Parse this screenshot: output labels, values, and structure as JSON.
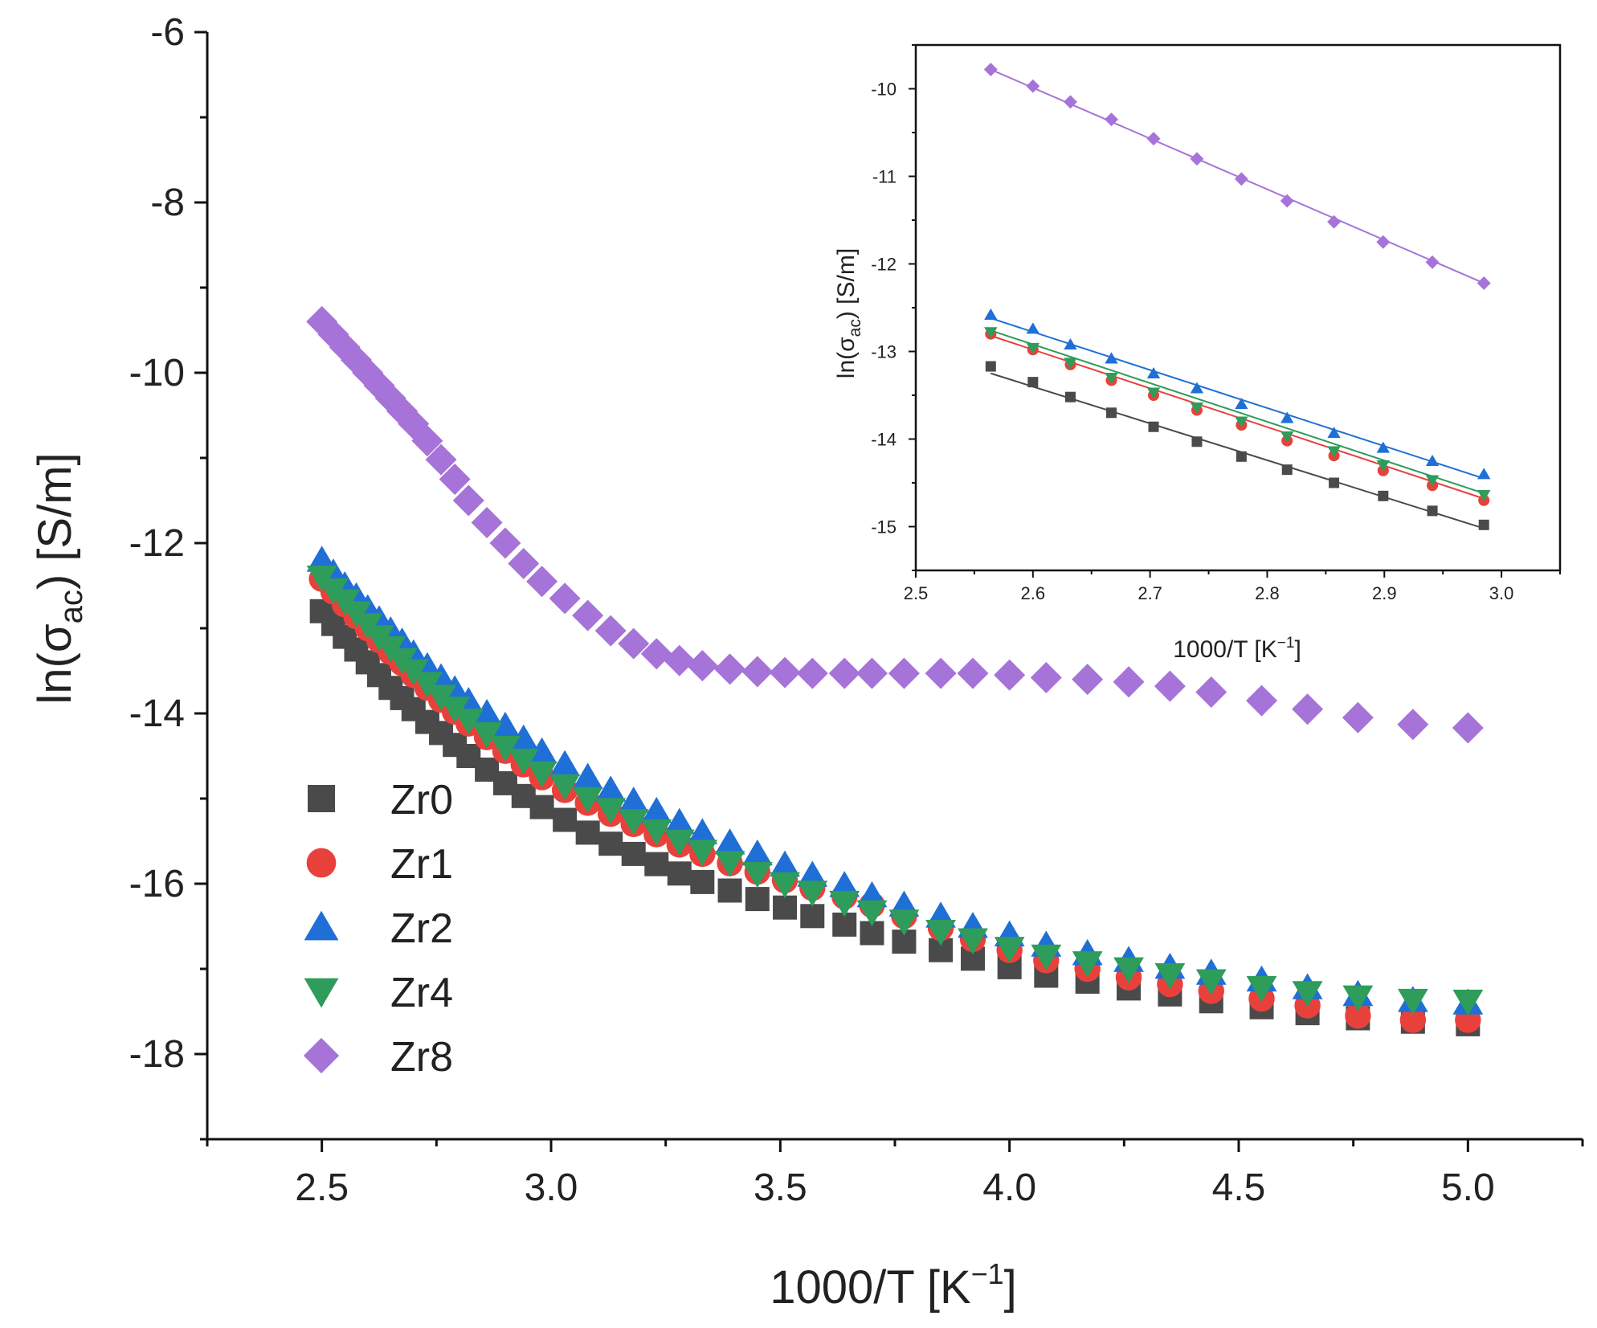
{
  "chart_data": [
    {
      "type": "scatter",
      "id": "main",
      "xlabel": "1000/T [K⁻¹]",
      "xlabel_parts": [
        "1000/T [K",
        "−1",
        "]"
      ],
      "ylabel": "ln(σac) [S/m]",
      "ylabel_parts": [
        "ln(σ",
        "ac",
        ") [S/m]"
      ],
      "xlim": [
        2.25,
        5.25
      ],
      "ylim": [
        -19,
        -6
      ],
      "xticks": [
        2.5,
        3.0,
        3.5,
        4.0,
        4.5,
        5.0
      ],
      "xtick_labels": [
        "2.5",
        "3.0",
        "3.5",
        "4.0",
        "4.5",
        "5.0"
      ],
      "yticks": [
        -6,
        -8,
        -10,
        -12,
        -14,
        -16,
        -18
      ],
      "ytick_labels": [
        "-6",
        "-8",
        "-10",
        "-12",
        "-14",
        "-16",
        "-18"
      ],
      "grid": false,
      "legend_position": "lower-left",
      "series": [
        {
          "name": "Zr0",
          "color": "#4a4a4a",
          "marker": "square",
          "x": [
            2.5,
            2.525,
            2.55,
            2.575,
            2.6,
            2.625,
            2.65,
            2.675,
            2.7,
            2.73,
            2.76,
            2.79,
            2.82,
            2.86,
            2.9,
            2.94,
            2.98,
            3.03,
            3.08,
            3.13,
            3.18,
            3.23,
            3.28,
            3.33,
            3.39,
            3.45,
            3.51,
            3.57,
            3.64,
            3.7,
            3.77,
            3.85,
            3.92,
            4.0,
            4.08,
            4.17,
            4.26,
            4.35,
            4.44,
            4.55,
            4.65,
            4.76,
            4.88,
            5.0
          ],
          "y": [
            -12.8,
            -12.95,
            -13.1,
            -13.25,
            -13.4,
            -13.55,
            -13.7,
            -13.82,
            -13.95,
            -14.1,
            -14.23,
            -14.37,
            -14.5,
            -14.66,
            -14.82,
            -14.97,
            -15.1,
            -15.25,
            -15.4,
            -15.53,
            -15.65,
            -15.77,
            -15.88,
            -15.98,
            -16.08,
            -16.18,
            -16.28,
            -16.38,
            -16.48,
            -16.58,
            -16.68,
            -16.78,
            -16.88,
            -16.98,
            -17.08,
            -17.15,
            -17.23,
            -17.3,
            -17.38,
            -17.45,
            -17.52,
            -17.58,
            -17.62,
            -17.65
          ]
        },
        {
          "name": "Zr1",
          "color": "#e8413c",
          "marker": "circle",
          "x": [
            2.5,
            2.525,
            2.55,
            2.575,
            2.6,
            2.625,
            2.65,
            2.675,
            2.7,
            2.73,
            2.76,
            2.79,
            2.82,
            2.86,
            2.9,
            2.94,
            2.98,
            3.03,
            3.08,
            3.13,
            3.18,
            3.23,
            3.28,
            3.33,
            3.39,
            3.45,
            3.51,
            3.57,
            3.64,
            3.7,
            3.77,
            3.85,
            3.92,
            4.0,
            4.08,
            4.17,
            4.26,
            4.35,
            4.44,
            4.55,
            4.65,
            4.76,
            4.88,
            5.0
          ],
          "y": [
            -12.42,
            -12.57,
            -12.72,
            -12.86,
            -13.0,
            -13.14,
            -13.28,
            -13.41,
            -13.55,
            -13.7,
            -13.84,
            -13.98,
            -14.12,
            -14.28,
            -14.44,
            -14.6,
            -14.75,
            -14.9,
            -15.05,
            -15.18,
            -15.3,
            -15.42,
            -15.54,
            -15.65,
            -15.76,
            -15.86,
            -15.96,
            -16.05,
            -16.15,
            -16.25,
            -16.38,
            -16.52,
            -16.65,
            -16.78,
            -16.9,
            -17.0,
            -17.1,
            -17.18,
            -17.26,
            -17.35,
            -17.43,
            -17.55,
            -17.6,
            -17.6
          ]
        },
        {
          "name": "Zr2",
          "color": "#1f6fd6",
          "marker": "triangle-up",
          "x": [
            2.5,
            2.525,
            2.55,
            2.575,
            2.6,
            2.625,
            2.65,
            2.675,
            2.7,
            2.73,
            2.76,
            2.79,
            2.82,
            2.86,
            2.9,
            2.94,
            2.98,
            3.03,
            3.08,
            3.13,
            3.18,
            3.23,
            3.28,
            3.33,
            3.39,
            3.45,
            3.51,
            3.57,
            3.64,
            3.7,
            3.77,
            3.85,
            3.92,
            4.0,
            4.08,
            4.17,
            4.26,
            4.35,
            4.44,
            4.55,
            4.65,
            4.76,
            4.88,
            5.0
          ],
          "y": [
            -12.2,
            -12.35,
            -12.5,
            -12.63,
            -12.77,
            -12.9,
            -13.03,
            -13.16,
            -13.3,
            -13.45,
            -13.58,
            -13.72,
            -13.86,
            -14.0,
            -14.15,
            -14.3,
            -14.45,
            -14.6,
            -14.75,
            -14.9,
            -15.03,
            -15.15,
            -15.28,
            -15.4,
            -15.52,
            -15.65,
            -15.78,
            -15.9,
            -16.02,
            -16.14,
            -16.25,
            -16.38,
            -16.5,
            -16.6,
            -16.72,
            -16.82,
            -16.9,
            -16.98,
            -17.05,
            -17.13,
            -17.22,
            -17.3,
            -17.37,
            -17.4
          ]
        },
        {
          "name": "Zr4",
          "color": "#2e9c5a",
          "marker": "triangle-down",
          "x": [
            2.5,
            2.525,
            2.55,
            2.575,
            2.6,
            2.625,
            2.65,
            2.675,
            2.7,
            2.73,
            2.76,
            2.79,
            2.82,
            2.86,
            2.9,
            2.94,
            2.98,
            3.03,
            3.08,
            3.13,
            3.18,
            3.23,
            3.28,
            3.33,
            3.39,
            3.45,
            3.51,
            3.57,
            3.64,
            3.7,
            3.77,
            3.85,
            3.92,
            4.0,
            4.08,
            4.17,
            4.26,
            4.35,
            4.44,
            4.55,
            4.65,
            4.76,
            4.88,
            5.0
          ],
          "y": [
            -12.4,
            -12.55,
            -12.68,
            -12.82,
            -12.96,
            -13.1,
            -13.23,
            -13.37,
            -13.5,
            -13.65,
            -13.8,
            -13.94,
            -14.08,
            -14.24,
            -14.4,
            -14.55,
            -14.7,
            -14.85,
            -15.0,
            -15.13,
            -15.26,
            -15.38,
            -15.5,
            -15.62,
            -15.75,
            -15.88,
            -16.0,
            -16.1,
            -16.22,
            -16.33,
            -16.44,
            -16.56,
            -16.66,
            -16.76,
            -16.85,
            -16.93,
            -17.0,
            -17.07,
            -17.14,
            -17.22,
            -17.28,
            -17.33,
            -17.37,
            -17.38
          ]
        },
        {
          "name": "Zr8",
          "color": "#a673d8",
          "marker": "diamond",
          "x": [
            2.5,
            2.525,
            2.55,
            2.575,
            2.6,
            2.625,
            2.65,
            2.675,
            2.7,
            2.73,
            2.76,
            2.79,
            2.82,
            2.86,
            2.9,
            2.94,
            2.98,
            3.03,
            3.08,
            3.13,
            3.18,
            3.23,
            3.28,
            3.33,
            3.39,
            3.45,
            3.51,
            3.57,
            3.64,
            3.7,
            3.77,
            3.85,
            3.92,
            4.0,
            4.08,
            4.17,
            4.26,
            4.35,
            4.44,
            4.55,
            4.65,
            4.76,
            4.88,
            5.0
          ],
          "y": [
            -9.4,
            -9.55,
            -9.7,
            -9.85,
            -10.0,
            -10.15,
            -10.3,
            -10.45,
            -10.6,
            -10.8,
            -11.02,
            -11.25,
            -11.5,
            -11.76,
            -12.0,
            -12.24,
            -12.45,
            -12.65,
            -12.85,
            -13.03,
            -13.18,
            -13.3,
            -13.38,
            -13.44,
            -13.48,
            -13.51,
            -13.52,
            -13.53,
            -13.53,
            -13.53,
            -13.53,
            -13.53,
            -13.53,
            -13.55,
            -13.58,
            -13.6,
            -13.63,
            -13.68,
            -13.75,
            -13.85,
            -13.95,
            -14.05,
            -14.13,
            -14.17
          ]
        }
      ]
    },
    {
      "type": "scatter",
      "id": "inset",
      "note": "inset with linear fits",
      "xlabel_parts": [
        "1000/T [K",
        "−1",
        "]"
      ],
      "ylabel_parts": [
        "ln(σ",
        "ac",
        ") [S/m]"
      ],
      "xlim": [
        2.5,
        3.05
      ],
      "ylim": [
        -15.5,
        -9.5
      ],
      "xticks": [
        2.5,
        2.6,
        2.7,
        2.8,
        2.9,
        3.0
      ],
      "xtick_labels": [
        "2.5",
        "2.6",
        "2.7",
        "2.8",
        "2.9",
        "3.0"
      ],
      "yticks": [
        -10,
        -11,
        -12,
        -13,
        -14,
        -15
      ],
      "ytick_labels": [
        "-10",
        "-11",
        "-12",
        "-13",
        "-14",
        "-15"
      ],
      "grid": false,
      "series": [
        {
          "name": "Zr0",
          "color": "#4a4a4a",
          "marker": "square",
          "x": [
            2.564,
            2.6,
            2.632,
            2.667,
            2.703,
            2.74,
            2.778,
            2.817,
            2.857,
            2.899,
            2.941,
            2.985
          ],
          "y": [
            -13.17,
            -13.35,
            -13.52,
            -13.7,
            -13.86,
            -14.03,
            -14.2,
            -14.35,
            -14.5,
            -14.65,
            -14.82,
            -14.98
          ],
          "fit": [
            [
              2.564,
              -13.25
            ],
            [
              2.985,
              -15.02
            ]
          ]
        },
        {
          "name": "Zr1",
          "color": "#e8413c",
          "marker": "circle",
          "x": [
            2.564,
            2.6,
            2.632,
            2.667,
            2.703,
            2.74,
            2.778,
            2.817,
            2.857,
            2.899,
            2.941,
            2.985
          ],
          "y": [
            -12.8,
            -12.98,
            -13.15,
            -13.33,
            -13.5,
            -13.67,
            -13.84,
            -14.02,
            -14.19,
            -14.36,
            -14.53,
            -14.7
          ],
          "fit": [
            [
              2.564,
              -12.82
            ],
            [
              2.985,
              -14.68
            ]
          ]
        },
        {
          "name": "Zr2",
          "color": "#1f6fd6",
          "marker": "triangle-up",
          "x": [
            2.564,
            2.6,
            2.632,
            2.667,
            2.703,
            2.74,
            2.778,
            2.817,
            2.857,
            2.899,
            2.941,
            2.985
          ],
          "y": [
            -12.58,
            -12.74,
            -12.92,
            -13.08,
            -13.25,
            -13.42,
            -13.6,
            -13.76,
            -13.93,
            -14.1,
            -14.25,
            -14.4
          ],
          "fit": [
            [
              2.564,
              -12.62
            ],
            [
              2.985,
              -14.45
            ]
          ]
        },
        {
          "name": "Zr4",
          "color": "#2e9c5a",
          "marker": "triangle-down",
          "x": [
            2.564,
            2.6,
            2.632,
            2.667,
            2.703,
            2.74,
            2.778,
            2.817,
            2.857,
            2.899,
            2.941,
            2.985
          ],
          "y": [
            -12.78,
            -12.96,
            -13.13,
            -13.3,
            -13.47,
            -13.64,
            -13.8,
            -13.97,
            -14.14,
            -14.3,
            -14.47,
            -14.64
          ],
          "fit": [
            [
              2.564,
              -12.76
            ],
            [
              2.985,
              -14.62
            ]
          ]
        },
        {
          "name": "Zr8",
          "color": "#a673d8",
          "marker": "diamond",
          "x": [
            2.564,
            2.6,
            2.632,
            2.667,
            2.703,
            2.74,
            2.778,
            2.817,
            2.857,
            2.899,
            2.941,
            2.985
          ],
          "y": [
            -9.78,
            -9.97,
            -10.15,
            -10.35,
            -10.57,
            -10.8,
            -11.03,
            -11.28,
            -11.52,
            -11.75,
            -11.98,
            -12.22
          ],
          "fit": [
            [
              2.564,
              -9.78
            ],
            [
              2.985,
              -12.22
            ]
          ]
        }
      ]
    }
  ]
}
